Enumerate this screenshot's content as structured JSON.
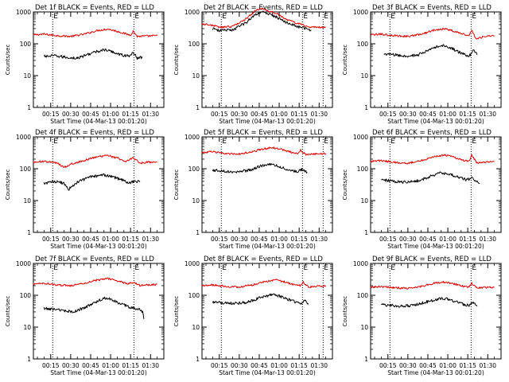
{
  "figure": {
    "background": "#ffffff"
  },
  "chart_data": [
    {
      "type": "line",
      "title": "Det 1f BLACK = Events, RED = LLD",
      "ylabel": "Counts/sec",
      "xlabel": "Start Time (04-Mar-13 00:01:20)",
      "yscale": "log",
      "ylim": [
        1,
        1000
      ],
      "yticks": [
        "1",
        "10",
        "100",
        "1000"
      ],
      "x_ticks": [
        "00:15",
        "00:30",
        "00:45",
        "01:00",
        "01:15",
        "01:30"
      ],
      "x_tick_values_min": [
        15,
        30,
        45,
        60,
        75,
        90
      ],
      "xlim_min": [
        2,
        100
      ],
      "markers_min": [
        16.5,
        77.5
      ],
      "marker_label": "E",
      "series": [
        {
          "color": "#dd0000",
          "x_min": [
            2,
            10,
            20,
            30,
            40,
            50,
            58,
            66,
            72,
            75,
            77,
            80,
            88,
            95
          ],
          "values": [
            190,
            200,
            180,
            170,
            200,
            260,
            290,
            240,
            200,
            190,
            250,
            170,
            175,
            180
          ]
        },
        {
          "color": "#000000",
          "x_min": [
            10,
            18,
            25,
            35,
            45,
            55,
            62,
            68,
            74,
            77,
            80,
            84
          ],
          "values": [
            40,
            42,
            38,
            35,
            50,
            65,
            55,
            45,
            40,
            55,
            35,
            38
          ]
        }
      ]
    },
    {
      "type": "line",
      "title": "Det 2f BLACK = Events, RED = LLD",
      "ylabel": "Counts/sec",
      "xlabel": "Start Time (04-Mar-13 00:01:20)",
      "yscale": "log",
      "ylim": [
        1,
        1000
      ],
      "yticks": [
        "1",
        "10",
        "100",
        "1000"
      ],
      "x_ticks": [
        "00:15",
        "00:30",
        "00:45",
        "01:00",
        "01:15",
        "01:30"
      ],
      "x_tick_values_min": [
        15,
        30,
        45,
        60,
        75,
        90
      ],
      "xlim_min": [
        2,
        100
      ],
      "markers_min": [
        16.5,
        77.5,
        93
      ],
      "marker_label": "E",
      "series": [
        {
          "color": "#dd0000",
          "x_min": [
            2,
            10,
            15,
            25,
            35,
            42,
            48,
            52,
            58,
            65,
            72,
            78,
            82,
            95
          ],
          "values": [
            420,
            380,
            330,
            350,
            600,
            1100,
            1300,
            1050,
            900,
            600,
            450,
            400,
            330,
            330
          ]
        },
        {
          "color": "#000000",
          "x_min": [
            10,
            15,
            25,
            35,
            42,
            48,
            52,
            58,
            65,
            72,
            78,
            84
          ],
          "values": [
            300,
            260,
            270,
            460,
            850,
            1000,
            850,
            700,
            480,
            360,
            320,
            270
          ]
        }
      ]
    },
    {
      "type": "line",
      "title": "Det 3f BLACK = Events, RED = LLD",
      "ylabel": "Counts/sec",
      "xlabel": "Start Time (04-Mar-13 00:01:20)",
      "yscale": "log",
      "ylim": [
        1,
        1000
      ],
      "yticks": [
        "1",
        "10",
        "100",
        "1000"
      ],
      "x_ticks": [
        "00:15",
        "00:30",
        "00:45",
        "01:00",
        "01:15",
        "01:30"
      ],
      "x_tick_values_min": [
        15,
        30,
        45,
        60,
        75,
        90
      ],
      "xlim_min": [
        2,
        100
      ],
      "markers_min": [
        16.5,
        77.5
      ],
      "marker_label": "E",
      "series": [
        {
          "color": "#dd0000",
          "x_min": [
            2,
            10,
            20,
            30,
            40,
            50,
            58,
            66,
            72,
            76,
            78,
            81,
            88,
            95
          ],
          "values": [
            190,
            200,
            180,
            170,
            200,
            270,
            300,
            240,
            200,
            180,
            280,
            140,
            170,
            180
          ]
        },
        {
          "color": "#000000",
          "x_min": [
            12,
            20,
            28,
            38,
            48,
            55,
            62,
            68,
            73,
            76,
            79,
            82
          ],
          "values": [
            48,
            45,
            40,
            45,
            70,
            90,
            75,
            55,
            45,
            40,
            65,
            45
          ]
        }
      ]
    },
    {
      "type": "line",
      "title": "Det 4f BLACK = Events, RED = LLD",
      "ylabel": "Counts/sec",
      "xlabel": "Start Time (04-Mar-13 00:01:20)",
      "yscale": "log",
      "ylim": [
        1,
        1000
      ],
      "yticks": [
        "1",
        "10",
        "100",
        "1000"
      ],
      "x_ticks": [
        "00:15",
        "00:30",
        "00:45",
        "01:00",
        "01:15",
        "01:30"
      ],
      "x_tick_values_min": [
        15,
        30,
        45,
        60,
        75,
        90
      ],
      "xlim_min": [
        2,
        100
      ],
      "markers_min": [
        16.5,
        77.5
      ],
      "marker_label": "E",
      "series": [
        {
          "color": "#dd0000",
          "x_min": [
            2,
            10,
            20,
            25,
            30,
            40,
            50,
            58,
            66,
            72,
            77,
            82,
            88,
            95
          ],
          "values": [
            160,
            170,
            150,
            110,
            140,
            180,
            240,
            260,
            210,
            170,
            220,
            150,
            160,
            160
          ]
        },
        {
          "color": "#000000",
          "x_min": [
            10,
            18,
            25,
            28,
            35,
            45,
            55,
            62,
            68,
            74,
            78,
            82
          ],
          "values": [
            35,
            40,
            35,
            22,
            38,
            55,
            65,
            55,
            45,
            35,
            42,
            38
          ]
        }
      ]
    },
    {
      "type": "line",
      "title": "Det 5f BLACK = Events, RED = LLD",
      "ylabel": "Counts/sec",
      "xlabel": "Start Time (04-Mar-13 00:01:20)",
      "yscale": "log",
      "ylim": [
        1,
        1000
      ],
      "yticks": [
        "1",
        "10",
        "100",
        "1000"
      ],
      "x_ticks": [
        "00:15",
        "00:30",
        "00:45",
        "01:00",
        "01:15",
        "01:30"
      ],
      "x_tick_values_min": [
        15,
        30,
        45,
        60,
        75,
        90
      ],
      "xlim_min": [
        2,
        100
      ],
      "markers_min": [
        16.5,
        77.5,
        93
      ],
      "marker_label": "E",
      "series": [
        {
          "color": "#dd0000",
          "x_min": [
            2,
            10,
            20,
            30,
            40,
            48,
            55,
            62,
            70,
            74,
            76,
            80,
            88,
            95
          ],
          "values": [
            320,
            340,
            300,
            290,
            340,
            420,
            460,
            400,
            320,
            290,
            380,
            280,
            290,
            300
          ]
        },
        {
          "color": "#000000",
          "x_min": [
            10,
            18,
            28,
            38,
            46,
            52,
            58,
            64,
            70,
            74,
            77,
            81
          ],
          "values": [
            90,
            85,
            80,
            90,
            120,
            140,
            125,
            100,
            85,
            80,
            95,
            78
          ]
        }
      ]
    },
    {
      "type": "line",
      "title": "Det 6f BLACK = Events, RED = LLD",
      "ylabel": "Counts/sec",
      "xlabel": "Start Time (04-Mar-13 00:01:20)",
      "yscale": "log",
      "ylim": [
        1,
        1000
      ],
      "yticks": [
        "1",
        "10",
        "100",
        "1000"
      ],
      "x_ticks": [
        "00:15",
        "00:30",
        "00:45",
        "01:00",
        "01:15",
        "01:30"
      ],
      "x_tick_values_min": [
        15,
        30,
        45,
        60,
        75,
        90
      ],
      "xlim_min": [
        2,
        100
      ],
      "markers_min": [
        16.5,
        77.5
      ],
      "marker_label": "E",
      "series": [
        {
          "color": "#dd0000",
          "x_min": [
            2,
            10,
            20,
            30,
            40,
            50,
            58,
            66,
            72,
            76,
            78,
            82,
            88,
            95
          ],
          "values": [
            170,
            180,
            160,
            150,
            180,
            240,
            270,
            220,
            180,
            170,
            260,
            150,
            160,
            170
          ]
        },
        {
          "color": "#000000",
          "x_min": [
            10,
            20,
            28,
            38,
            48,
            55,
            62,
            68,
            74,
            78,
            82,
            84
          ],
          "values": [
            45,
            40,
            38,
            42,
            60,
            75,
            65,
            55,
            45,
            50,
            40,
            35
          ]
        }
      ]
    },
    {
      "type": "line",
      "title": "Det 7f BLACK = Events, RED = LLD",
      "ylabel": "Counts/sec",
      "xlabel": "Start Time (04-Mar-13 00:01:20)",
      "yscale": "log",
      "ylim": [
        1,
        1000
      ],
      "yticks": [
        "1",
        "10",
        "100",
        "1000"
      ],
      "x_ticks": [
        "00:15",
        "00:30",
        "00:45",
        "01:00",
        "01:15",
        "01:30"
      ],
      "x_tick_values_min": [
        15,
        30,
        45,
        60,
        75,
        90
      ],
      "xlim_min": [
        2,
        100
      ],
      "markers_min": [
        16.5,
        77.5
      ],
      "marker_label": "E",
      "series": [
        {
          "color": "#dd0000",
          "x_min": [
            2,
            10,
            20,
            30,
            40,
            50,
            58,
            66,
            72,
            77,
            82,
            88,
            95
          ],
          "values": [
            220,
            240,
            210,
            200,
            240,
            300,
            330,
            280,
            230,
            250,
            200,
            210,
            220
          ]
        },
        {
          "color": "#000000",
          "x_min": [
            10,
            18,
            25,
            32,
            40,
            48,
            55,
            60,
            65,
            70,
            75,
            80,
            84,
            85
          ],
          "values": [
            38,
            36,
            32,
            30,
            40,
            60,
            80,
            75,
            60,
            50,
            40,
            38,
            30,
            18
          ]
        }
      ]
    },
    {
      "type": "line",
      "title": "Det 8f BLACK = Events, RED = LLD",
      "ylabel": "Counts/sec",
      "xlabel": "Start Time (04-Mar-13 00:01:20)",
      "yscale": "log",
      "ylim": [
        1,
        1000
      ],
      "yticks": [
        "1",
        "10",
        "100",
        "1000"
      ],
      "x_ticks": [
        "00:15",
        "00:30",
        "00:45",
        "01:00",
        "01:15",
        "01:30"
      ],
      "x_tick_values_min": [
        15,
        30,
        45,
        60,
        75,
        90
      ],
      "xlim_min": [
        2,
        100
      ],
      "markers_min": [
        16.5,
        77.5,
        93
      ],
      "marker_label": "E",
      "series": [
        {
          "color": "#dd0000",
          "x_min": [
            2,
            10,
            20,
            30,
            40,
            50,
            58,
            66,
            72,
            76,
            78,
            82,
            88,
            95
          ],
          "values": [
            200,
            210,
            190,
            180,
            210,
            270,
            300,
            250,
            210,
            200,
            260,
            180,
            190,
            200
          ]
        },
        {
          "color": "#000000",
          "x_min": [
            10,
            18,
            26,
            36,
            46,
            54,
            60,
            66,
            72,
            76,
            79,
            82
          ],
          "values": [
            60,
            58,
            55,
            60,
            85,
            105,
            95,
            75,
            62,
            55,
            68,
            52
          ]
        }
      ]
    },
    {
      "type": "line",
      "title": "Det 9f BLACK = Events, RED = LLD",
      "ylabel": "Counts/sec",
      "xlabel": "Start Time (04-Mar-13 00:01:20)",
      "yscale": "log",
      "ylim": [
        1,
        1000
      ],
      "yticks": [
        "1",
        "10",
        "100",
        "1000"
      ],
      "x_ticks": [
        "00:15",
        "00:30",
        "00:45",
        "01:00",
        "01:15",
        "01:30"
      ],
      "x_tick_values_min": [
        15,
        30,
        45,
        60,
        75,
        90
      ],
      "xlim_min": [
        2,
        100
      ],
      "markers_min": [
        16.5,
        77.5
      ],
      "marker_label": "E",
      "series": [
        {
          "color": "#dd0000",
          "x_min": [
            2,
            10,
            20,
            30,
            40,
            50,
            58,
            66,
            72,
            76,
            78,
            82,
            88,
            95
          ],
          "values": [
            180,
            190,
            170,
            165,
            190,
            240,
            260,
            220,
            190,
            180,
            240,
            170,
            175,
            180
          ]
        },
        {
          "color": "#000000",
          "x_min": [
            10,
            18,
            26,
            36,
            46,
            54,
            60,
            66,
            72,
            76,
            79,
            82
          ],
          "values": [
            50,
            48,
            45,
            50,
            65,
            80,
            75,
            62,
            52,
            48,
            60,
            45
          ]
        }
      ]
    }
  ]
}
